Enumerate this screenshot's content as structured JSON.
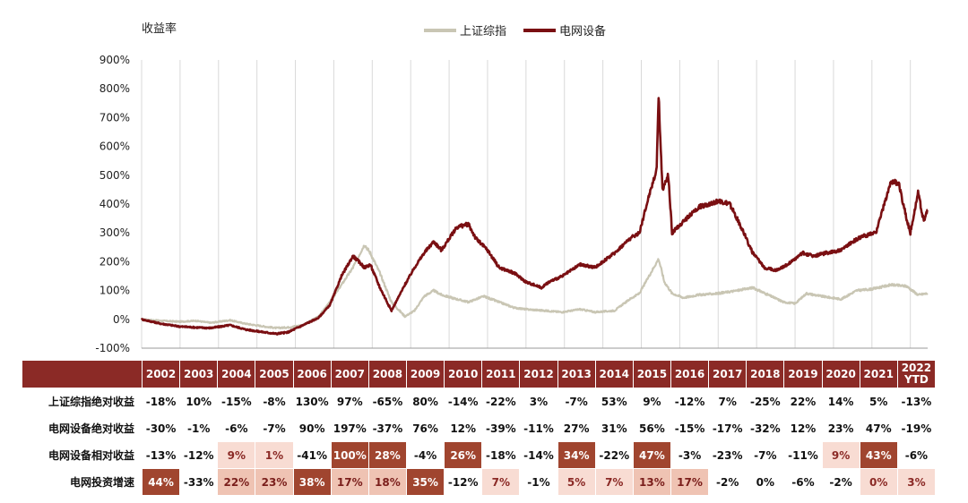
{
  "chart_data": {
    "type": "line",
    "ylabel": "收益率",
    "ylim": [
      -100,
      900
    ],
    "yticks": [
      "900%",
      "800%",
      "700%",
      "600%",
      "500%",
      "400%",
      "300%",
      "200%",
      "100%",
      "0%",
      "-100%"
    ],
    "x_start": 2002,
    "x_end": 2022.45,
    "series": [
      {
        "name": "上证综指",
        "color": "#c9c6b4",
        "x": [
          2002.0,
          2002.5,
          2003.0,
          2003.4,
          2003.8,
          2004.3,
          2004.7,
          2005.2,
          2005.5,
          2005.8,
          2006.2,
          2006.6,
          2006.9,
          2007.2,
          2007.5,
          2007.8,
          2007.95,
          2008.2,
          2008.5,
          2008.85,
          2009.1,
          2009.35,
          2009.6,
          2009.8,
          2010.2,
          2010.5,
          2010.9,
          2011.3,
          2011.7,
          2012.0,
          2012.5,
          2012.95,
          2013.4,
          2013.8,
          2014.3,
          2014.7,
          2014.95,
          2015.2,
          2015.45,
          2015.6,
          2015.8,
          2016.1,
          2016.5,
          2017.0,
          2017.5,
          2017.9,
          2018.3,
          2018.7,
          2019.0,
          2019.3,
          2019.7,
          2020.2,
          2020.6,
          2021.0,
          2021.5,
          2021.9,
          2022.2,
          2022.45
        ],
        "y": [
          0,
          -5,
          -8,
          -5,
          -12,
          -3,
          -15,
          -25,
          -30,
          -28,
          -20,
          10,
          60,
          120,
          180,
          260,
          230,
          160,
          60,
          10,
          30,
          80,
          100,
          85,
          70,
          60,
          80,
          60,
          40,
          35,
          30,
          25,
          35,
          25,
          30,
          70,
          90,
          150,
          210,
          130,
          90,
          75,
          85,
          90,
          100,
          110,
          85,
          60,
          55,
          90,
          80,
          70,
          100,
          105,
          120,
          115,
          85,
          90
        ]
      },
      {
        "name": "电网设备",
        "color": "#7a0f12",
        "x": [
          2002.0,
          2002.5,
          2003.0,
          2003.4,
          2003.8,
          2004.3,
          2004.7,
          2005.2,
          2005.5,
          2005.8,
          2006.2,
          2006.6,
          2006.9,
          2007.2,
          2007.5,
          2007.8,
          2007.95,
          2008.2,
          2008.5,
          2008.85,
          2009.1,
          2009.35,
          2009.6,
          2009.8,
          2010.2,
          2010.5,
          2010.7,
          2011.0,
          2011.3,
          2011.7,
          2012.0,
          2012.4,
          2012.6,
          2012.95,
          2013.4,
          2013.8,
          2014.3,
          2014.7,
          2014.95,
          2015.2,
          2015.4,
          2015.45,
          2015.55,
          2015.7,
          2015.8,
          2016.1,
          2016.5,
          2017.0,
          2017.3,
          2017.6,
          2017.9,
          2018.2,
          2018.5,
          2018.8,
          2019.2,
          2019.5,
          2019.8,
          2020.2,
          2020.5,
          2020.8,
          2021.1,
          2021.5,
          2021.7,
          2021.9,
          2022.0,
          2022.2,
          2022.35,
          2022.45
        ],
        "y": [
          0,
          -15,
          -25,
          -28,
          -30,
          -20,
          -35,
          -45,
          -50,
          -45,
          -20,
          5,
          50,
          150,
          220,
          180,
          190,
          110,
          30,
          120,
          180,
          230,
          270,
          240,
          320,
          330,
          280,
          240,
          180,
          160,
          130,
          110,
          130,
          150,
          190,
          180,
          230,
          280,
          300,
          430,
          520,
          780,
          450,
          500,
          300,
          340,
          390,
          410,
          400,
          320,
          230,
          180,
          170,
          190,
          230,
          220,
          230,
          240,
          270,
          290,
          300,
          480,
          470,
          350,
          300,
          440,
          340,
          380
        ]
      }
    ],
    "legend": "top-center"
  },
  "table": {
    "headers": [
      "2002",
      "2003",
      "2004",
      "2005",
      "2006",
      "2007",
      "2008",
      "2009",
      "2010",
      "2011",
      "2012",
      "2013",
      "2014",
      "2015",
      "2016",
      "2017",
      "2018",
      "2019",
      "2020",
      "2021",
      "2022\nYTD"
    ],
    "rows": [
      {
        "label": "上证综指绝对收益",
        "values": [
          "-18%",
          "10%",
          "-15%",
          "-8%",
          "130%",
          "97%",
          "-65%",
          "80%",
          "-14%",
          "-22%",
          "3%",
          "-7%",
          "53%",
          "9%",
          "-12%",
          "7%",
          "-25%",
          "22%",
          "14%",
          "5%",
          "-13%"
        ],
        "hl": [
          "",
          "",
          "",
          "",
          "",
          "",
          "",
          "",
          "",
          "",
          "",
          "",
          "",
          "",
          "",
          "",
          "",
          "",
          "",
          "",
          ""
        ]
      },
      {
        "label": "电网设备绝对收益",
        "values": [
          "-30%",
          "-1%",
          "-6%",
          "-7%",
          "90%",
          "197%",
          "-37%",
          "76%",
          "12%",
          "-39%",
          "-11%",
          "27%",
          "31%",
          "56%",
          "-15%",
          "-17%",
          "-32%",
          "12%",
          "23%",
          "47%",
          "-19%"
        ],
        "hl": [
          "",
          "",
          "",
          "",
          "",
          "",
          "",
          "",
          "",
          "",
          "",
          "",
          "",
          "",
          "",
          "",
          "",
          "",
          "",
          "",
          ""
        ]
      },
      {
        "label": "电网设备相对收益",
        "values": [
          "-13%",
          "-12%",
          "9%",
          "1%",
          "-41%",
          "100%",
          "28%",
          "-4%",
          "26%",
          "-18%",
          "-14%",
          "34%",
          "-22%",
          "47%",
          "-3%",
          "-23%",
          "-7%",
          "-11%",
          "9%",
          "43%",
          "-6%"
        ],
        "hl": [
          "",
          "",
          "light",
          "light",
          "",
          "dark",
          "dark",
          "",
          "dark",
          "",
          "",
          "dark",
          "",
          "dark",
          "",
          "",
          "",
          "",
          "light",
          "dark",
          ""
        ]
      },
      {
        "label": "电网投资增速",
        "values": [
          "44%",
          "-33%",
          "22%",
          "23%",
          "38%",
          "17%",
          "18%",
          "35%",
          "-12%",
          "7%",
          "-1%",
          "5%",
          "7%",
          "13%",
          "17%",
          "-2%",
          "0%",
          "-6%",
          "-2%",
          "0%",
          "3%"
        ],
        "hl": [
          "dark",
          "",
          "mid",
          "mid",
          "dark",
          "mid",
          "mid",
          "dark",
          "",
          "light",
          "",
          "light",
          "light",
          "mid",
          "mid",
          "",
          "",
          "",
          "",
          "light",
          "light"
        ]
      }
    ]
  }
}
